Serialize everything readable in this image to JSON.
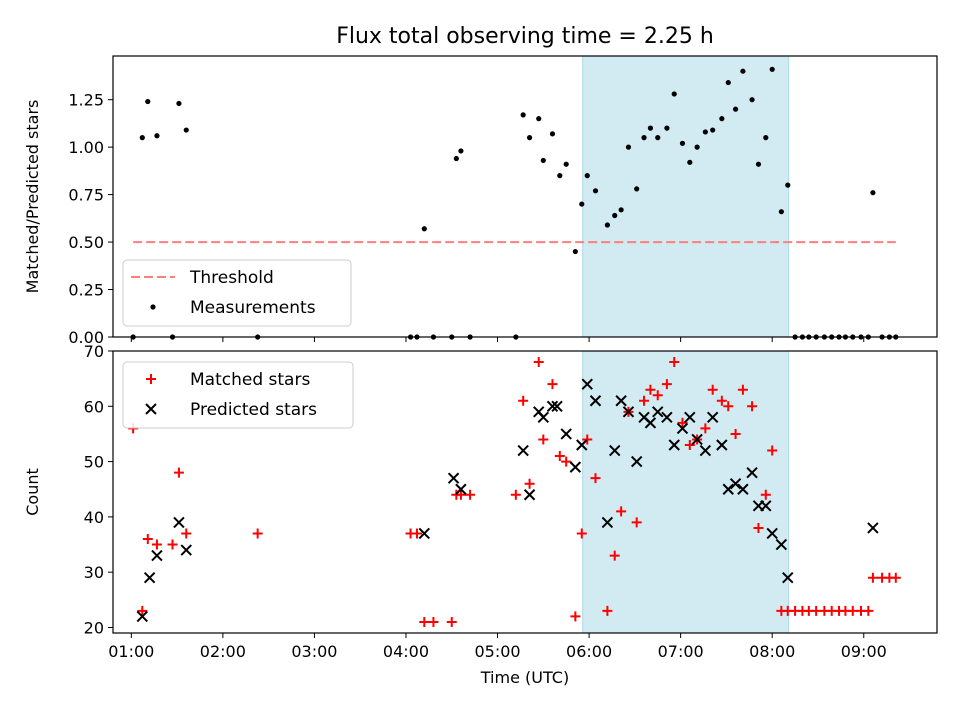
{
  "chart_data": [
    {
      "type": "scatter",
      "title": "Flux total observing time = 2.25 h",
      "xlabel": "",
      "ylabel": "Matched/Predicted stars",
      "xlim": [
        0.8,
        9.8
      ],
      "ylim": [
        0,
        1.48
      ],
      "yticks": [
        {
          "v": 0,
          "label": "0.00"
        },
        {
          "v": 0.25,
          "label": "0.25"
        },
        {
          "v": 0.5,
          "label": "0.50"
        },
        {
          "v": 0.75,
          "label": "0.75"
        },
        {
          "v": 1.0,
          "label": "1.00"
        },
        {
          "v": 1.25,
          "label": "1.25"
        }
      ],
      "shaded_region": {
        "x": [
          5.93,
          8.18
        ],
        "color": "#add8e6"
      },
      "threshold": {
        "name": "Threshold",
        "value": 0.5,
        "x": [
          1.02,
          9.35
        ],
        "color": "#ff7f7f"
      },
      "series": [
        {
          "name": "Measurements",
          "color": "#000000",
          "points": [
            [
              1.02,
              0.0
            ],
            [
              1.12,
              1.05
            ],
            [
              1.18,
              1.24
            ],
            [
              1.28,
              1.06
            ],
            [
              1.45,
              0.0
            ],
            [
              1.52,
              1.23
            ],
            [
              1.6,
              1.09
            ],
            [
              2.38,
              0.0
            ],
            [
              4.05,
              0.0
            ],
            [
              4.12,
              0.0
            ],
            [
              4.2,
              0.57
            ],
            [
              4.3,
              0.0
            ],
            [
              4.5,
              0.0
            ],
            [
              4.55,
              0.94
            ],
            [
              4.6,
              0.98
            ],
            [
              4.7,
              0.0
            ],
            [
              5.2,
              0.0
            ],
            [
              5.28,
              1.17
            ],
            [
              5.35,
              1.05
            ],
            [
              5.45,
              1.15
            ],
            [
              5.5,
              0.93
            ],
            [
              5.6,
              1.07
            ],
            [
              5.68,
              0.85
            ],
            [
              5.75,
              0.91
            ],
            [
              5.85,
              0.45
            ],
            [
              5.92,
              0.7
            ],
            [
              5.98,
              0.85
            ],
            [
              6.07,
              0.77
            ],
            [
              6.2,
              0.59
            ],
            [
              6.28,
              0.64
            ],
            [
              6.35,
              0.67
            ],
            [
              6.43,
              1.0
            ],
            [
              6.52,
              0.78
            ],
            [
              6.6,
              1.05
            ],
            [
              6.67,
              1.1
            ],
            [
              6.75,
              1.05
            ],
            [
              6.85,
              1.1
            ],
            [
              6.93,
              1.28
            ],
            [
              7.02,
              1.02
            ],
            [
              7.1,
              0.92
            ],
            [
              7.18,
              1.0
            ],
            [
              7.27,
              1.08
            ],
            [
              7.35,
              1.09
            ],
            [
              7.45,
              1.15
            ],
            [
              7.52,
              1.34
            ],
            [
              7.6,
              1.2
            ],
            [
              7.68,
              1.4
            ],
            [
              7.78,
              1.25
            ],
            [
              7.85,
              0.91
            ],
            [
              7.93,
              1.05
            ],
            [
              8.0,
              1.41
            ],
            [
              8.1,
              0.66
            ],
            [
              8.17,
              0.8
            ],
            [
              8.25,
              0.0
            ],
            [
              8.33,
              0.0
            ],
            [
              8.4,
              0.0
            ],
            [
              8.48,
              0.0
            ],
            [
              8.57,
              0.0
            ],
            [
              8.65,
              0.0
            ],
            [
              8.73,
              0.0
            ],
            [
              8.8,
              0.0
            ],
            [
              8.88,
              0.0
            ],
            [
              8.97,
              0.0
            ],
            [
              9.05,
              0.0
            ],
            [
              9.1,
              0.76
            ],
            [
              9.2,
              0.0
            ],
            [
              9.28,
              0.0
            ],
            [
              9.35,
              0.0
            ]
          ]
        }
      ],
      "legend": {
        "position": "bottom-left",
        "entries": [
          "Threshold",
          "Measurements"
        ]
      }
    },
    {
      "type": "scatter",
      "title": "",
      "xlabel": "Time (UTC)",
      "ylabel": "Count",
      "xlim": [
        0.8,
        9.8
      ],
      "ylim": [
        19,
        70
      ],
      "yticks": [
        {
          "v": 20,
          "label": "20"
        },
        {
          "v": 30,
          "label": "30"
        },
        {
          "v": 40,
          "label": "40"
        },
        {
          "v": 50,
          "label": "50"
        },
        {
          "v": 60,
          "label": "60"
        },
        {
          "v": 70,
          "label": "70"
        }
      ],
      "xticks": [
        {
          "v": 1,
          "label": "01:00"
        },
        {
          "v": 2,
          "label": "02:00"
        },
        {
          "v": 3,
          "label": "03:00"
        },
        {
          "v": 4,
          "label": "04:00"
        },
        {
          "v": 5,
          "label": "05:00"
        },
        {
          "v": 6,
          "label": "06:00"
        },
        {
          "v": 7,
          "label": "07:00"
        },
        {
          "v": 8,
          "label": "08:00"
        },
        {
          "v": 9,
          "label": "09:00"
        }
      ],
      "shaded_region": {
        "x": [
          5.93,
          8.18
        ],
        "color": "#add8e6"
      },
      "series": [
        {
          "name": "Matched stars",
          "marker": "+",
          "color": "#ff0000",
          "points": [
            [
              1.02,
              56
            ],
            [
              1.12,
              23
            ],
            [
              1.18,
              36
            ],
            [
              1.28,
              35
            ],
            [
              1.45,
              35
            ],
            [
              1.52,
              48
            ],
            [
              1.6,
              37
            ],
            [
              2.38,
              37
            ],
            [
              4.05,
              37
            ],
            [
              4.12,
              37
            ],
            [
              4.2,
              21
            ],
            [
              4.3,
              21
            ],
            [
              4.5,
              21
            ],
            [
              4.55,
              44
            ],
            [
              4.6,
              44
            ],
            [
              4.7,
              44
            ],
            [
              5.2,
              44
            ],
            [
              5.28,
              61
            ],
            [
              5.35,
              46
            ],
            [
              5.45,
              68
            ],
            [
              5.5,
              54
            ],
            [
              5.6,
              64
            ],
            [
              5.68,
              51
            ],
            [
              5.75,
              50
            ],
            [
              5.85,
              22
            ],
            [
              5.92,
              37
            ],
            [
              5.98,
              54
            ],
            [
              6.07,
              47
            ],
            [
              6.2,
              23
            ],
            [
              6.28,
              33
            ],
            [
              6.35,
              41
            ],
            [
              6.43,
              59
            ],
            [
              6.52,
              39
            ],
            [
              6.6,
              61
            ],
            [
              6.67,
              63
            ],
            [
              6.75,
              62
            ],
            [
              6.85,
              64
            ],
            [
              6.93,
              68
            ],
            [
              7.02,
              57
            ],
            [
              7.1,
              53
            ],
            [
              7.18,
              54
            ],
            [
              7.27,
              56
            ],
            [
              7.35,
              63
            ],
            [
              7.45,
              61
            ],
            [
              7.52,
              60
            ],
            [
              7.6,
              55
            ],
            [
              7.68,
              63
            ],
            [
              7.78,
              60
            ],
            [
              7.85,
              38
            ],
            [
              7.93,
              44
            ],
            [
              8.0,
              52
            ],
            [
              8.1,
              23
            ],
            [
              8.17,
              23
            ],
            [
              8.25,
              23
            ],
            [
              8.33,
              23
            ],
            [
              8.4,
              23
            ],
            [
              8.48,
              23
            ],
            [
              8.57,
              23
            ],
            [
              8.65,
              23
            ],
            [
              8.73,
              23
            ],
            [
              8.8,
              23
            ],
            [
              8.88,
              23
            ],
            [
              8.97,
              23
            ],
            [
              9.05,
              23
            ],
            [
              9.1,
              29
            ],
            [
              9.2,
              29
            ],
            [
              9.28,
              29
            ],
            [
              9.35,
              29
            ]
          ]
        },
        {
          "name": "Predicted stars",
          "marker": "x",
          "color": "#000000",
          "points": [
            [
              1.12,
              22
            ],
            [
              1.2,
              29
            ],
            [
              1.28,
              33
            ],
            [
              1.52,
              39
            ],
            [
              1.6,
              34
            ],
            [
              4.2,
              37
            ],
            [
              4.52,
              47
            ],
            [
              4.6,
              45
            ],
            [
              5.28,
              52
            ],
            [
              5.35,
              44
            ],
            [
              5.45,
              59
            ],
            [
              5.5,
              58
            ],
            [
              5.6,
              60
            ],
            [
              5.65,
              60
            ],
            [
              5.75,
              55
            ],
            [
              5.85,
              49
            ],
            [
              5.92,
              53
            ],
            [
              5.98,
              64
            ],
            [
              6.07,
              61
            ],
            [
              6.2,
              39
            ],
            [
              6.28,
              52
            ],
            [
              6.35,
              61
            ],
            [
              6.43,
              59
            ],
            [
              6.52,
              50
            ],
            [
              6.6,
              58
            ],
            [
              6.67,
              57
            ],
            [
              6.75,
              59
            ],
            [
              6.85,
              58
            ],
            [
              6.93,
              53
            ],
            [
              7.02,
              56
            ],
            [
              7.1,
              58
            ],
            [
              7.18,
              54
            ],
            [
              7.27,
              52
            ],
            [
              7.35,
              58
            ],
            [
              7.45,
              53
            ],
            [
              7.52,
              45
            ],
            [
              7.6,
              46
            ],
            [
              7.68,
              45
            ],
            [
              7.78,
              48
            ],
            [
              7.85,
              42
            ],
            [
              7.93,
              42
            ],
            [
              8.0,
              37
            ],
            [
              8.1,
              35
            ],
            [
              8.17,
              29
            ],
            [
              9.1,
              38
            ]
          ]
        }
      ],
      "legend": {
        "position": "top-left",
        "entries": [
          "Matched stars",
          "Predicted stars"
        ]
      }
    }
  ]
}
